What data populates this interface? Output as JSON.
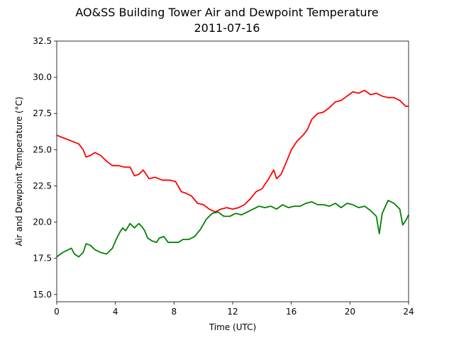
{
  "chart_data": {
    "type": "line",
    "title": "AO&SS Building Tower Air and Dewpoint Temperature",
    "subtitle": "2011-07-16",
    "xlabel": "Time (UTC)",
    "ylabel": "Air and Dewpoint Temperature (°C)",
    "xlim": [
      0,
      24
    ],
    "ylim": [
      14.5,
      32.5
    ],
    "xticks": [
      0,
      4,
      8,
      12,
      16,
      20,
      24
    ],
    "xtick_labels": [
      "0",
      "4",
      "8",
      "12",
      "16",
      "20",
      "24"
    ],
    "yticks": [
      15.0,
      17.5,
      20.0,
      22.5,
      25.0,
      27.5,
      30.0,
      32.5
    ],
    "ytick_labels": [
      "15.0",
      "17.5",
      "20.0",
      "22.5",
      "25.0",
      "27.5",
      "30.0",
      "32.5"
    ],
    "grid": false,
    "legend": false,
    "series": [
      {
        "color": "#ff0000",
        "x": [
          0,
          0.5,
          1,
          1.5,
          1.8,
          2.0,
          2.3,
          2.6,
          3.0,
          3.4,
          3.8,
          4.2,
          4.6,
          5.0,
          5.3,
          5.6,
          5.9,
          6.3,
          6.7,
          7.2,
          7.7,
          8.1,
          8.5,
          8.8,
          9.2,
          9.6,
          10.0,
          10.4,
          10.8,
          11.2,
          11.6,
          12.0,
          12.4,
          12.8,
          13.2,
          13.6,
          14.0,
          14.4,
          14.8,
          15.0,
          15.3,
          15.6,
          16.0,
          16.4,
          16.8,
          17.1,
          17.4,
          17.8,
          18.2,
          18.6,
          19.0,
          19.4,
          19.8,
          20.2,
          20.6,
          21.0,
          21.4,
          21.8,
          22.2,
          22.6,
          23.0,
          23.4,
          23.8,
          24.0
        ],
        "y": [
          26.0,
          25.8,
          25.6,
          25.4,
          25.0,
          24.5,
          24.6,
          24.8,
          24.6,
          24.2,
          23.9,
          23.9,
          23.8,
          23.8,
          23.2,
          23.3,
          23.6,
          23.0,
          23.1,
          22.9,
          22.9,
          22.8,
          22.1,
          22.0,
          21.8,
          21.3,
          21.2,
          20.9,
          20.7,
          20.9,
          21.0,
          20.9,
          21.0,
          21.2,
          21.6,
          22.1,
          22.3,
          22.9,
          23.6,
          23.0,
          23.3,
          24.0,
          25.0,
          25.6,
          26.0,
          26.4,
          27.1,
          27.5,
          27.6,
          27.9,
          28.3,
          28.4,
          28.7,
          29.0,
          28.9,
          29.1,
          28.8,
          28.9,
          28.7,
          28.6,
          28.6,
          28.4,
          28.0,
          28.0
        ]
      },
      {
        "color": "#008000",
        "x": [
          0,
          0.4,
          0.8,
          1.0,
          1.2,
          1.5,
          1.8,
          2.0,
          2.3,
          2.6,
          3.0,
          3.4,
          3.8,
          4.1,
          4.3,
          4.5,
          4.7,
          5.0,
          5.3,
          5.6,
          5.8,
          6.0,
          6.2,
          6.5,
          6.8,
          7.0,
          7.3,
          7.6,
          8.0,
          8.3,
          8.6,
          9.0,
          9.4,
          9.8,
          10.2,
          10.6,
          11.0,
          11.4,
          11.8,
          12.2,
          12.6,
          13.0,
          13.4,
          13.8,
          14.2,
          14.6,
          15.0,
          15.4,
          15.8,
          16.2,
          16.6,
          17.0,
          17.4,
          17.8,
          18.2,
          18.6,
          19.0,
          19.4,
          19.8,
          20.2,
          20.6,
          21.0,
          21.4,
          21.8,
          22.0,
          22.2,
          22.6,
          23.0,
          23.4,
          23.6,
          23.8,
          24.0
        ],
        "y": [
          17.6,
          17.9,
          18.1,
          18.2,
          17.8,
          17.6,
          17.9,
          18.5,
          18.4,
          18.1,
          17.9,
          17.8,
          18.2,
          18.9,
          19.3,
          19.6,
          19.4,
          19.9,
          19.6,
          19.9,
          19.7,
          19.4,
          18.9,
          18.7,
          18.6,
          18.9,
          19.0,
          18.6,
          18.6,
          18.6,
          18.8,
          18.8,
          19.0,
          19.5,
          20.2,
          20.6,
          20.7,
          20.4,
          20.4,
          20.6,
          20.5,
          20.7,
          20.9,
          21.1,
          21.0,
          21.1,
          20.9,
          21.2,
          21.0,
          21.1,
          21.1,
          21.3,
          21.4,
          21.2,
          21.2,
          21.1,
          21.3,
          21.0,
          21.3,
          21.2,
          21.0,
          21.1,
          20.8,
          20.4,
          19.2,
          20.6,
          21.5,
          21.3,
          20.9,
          19.8,
          20.1,
          20.5
        ]
      }
    ]
  }
}
